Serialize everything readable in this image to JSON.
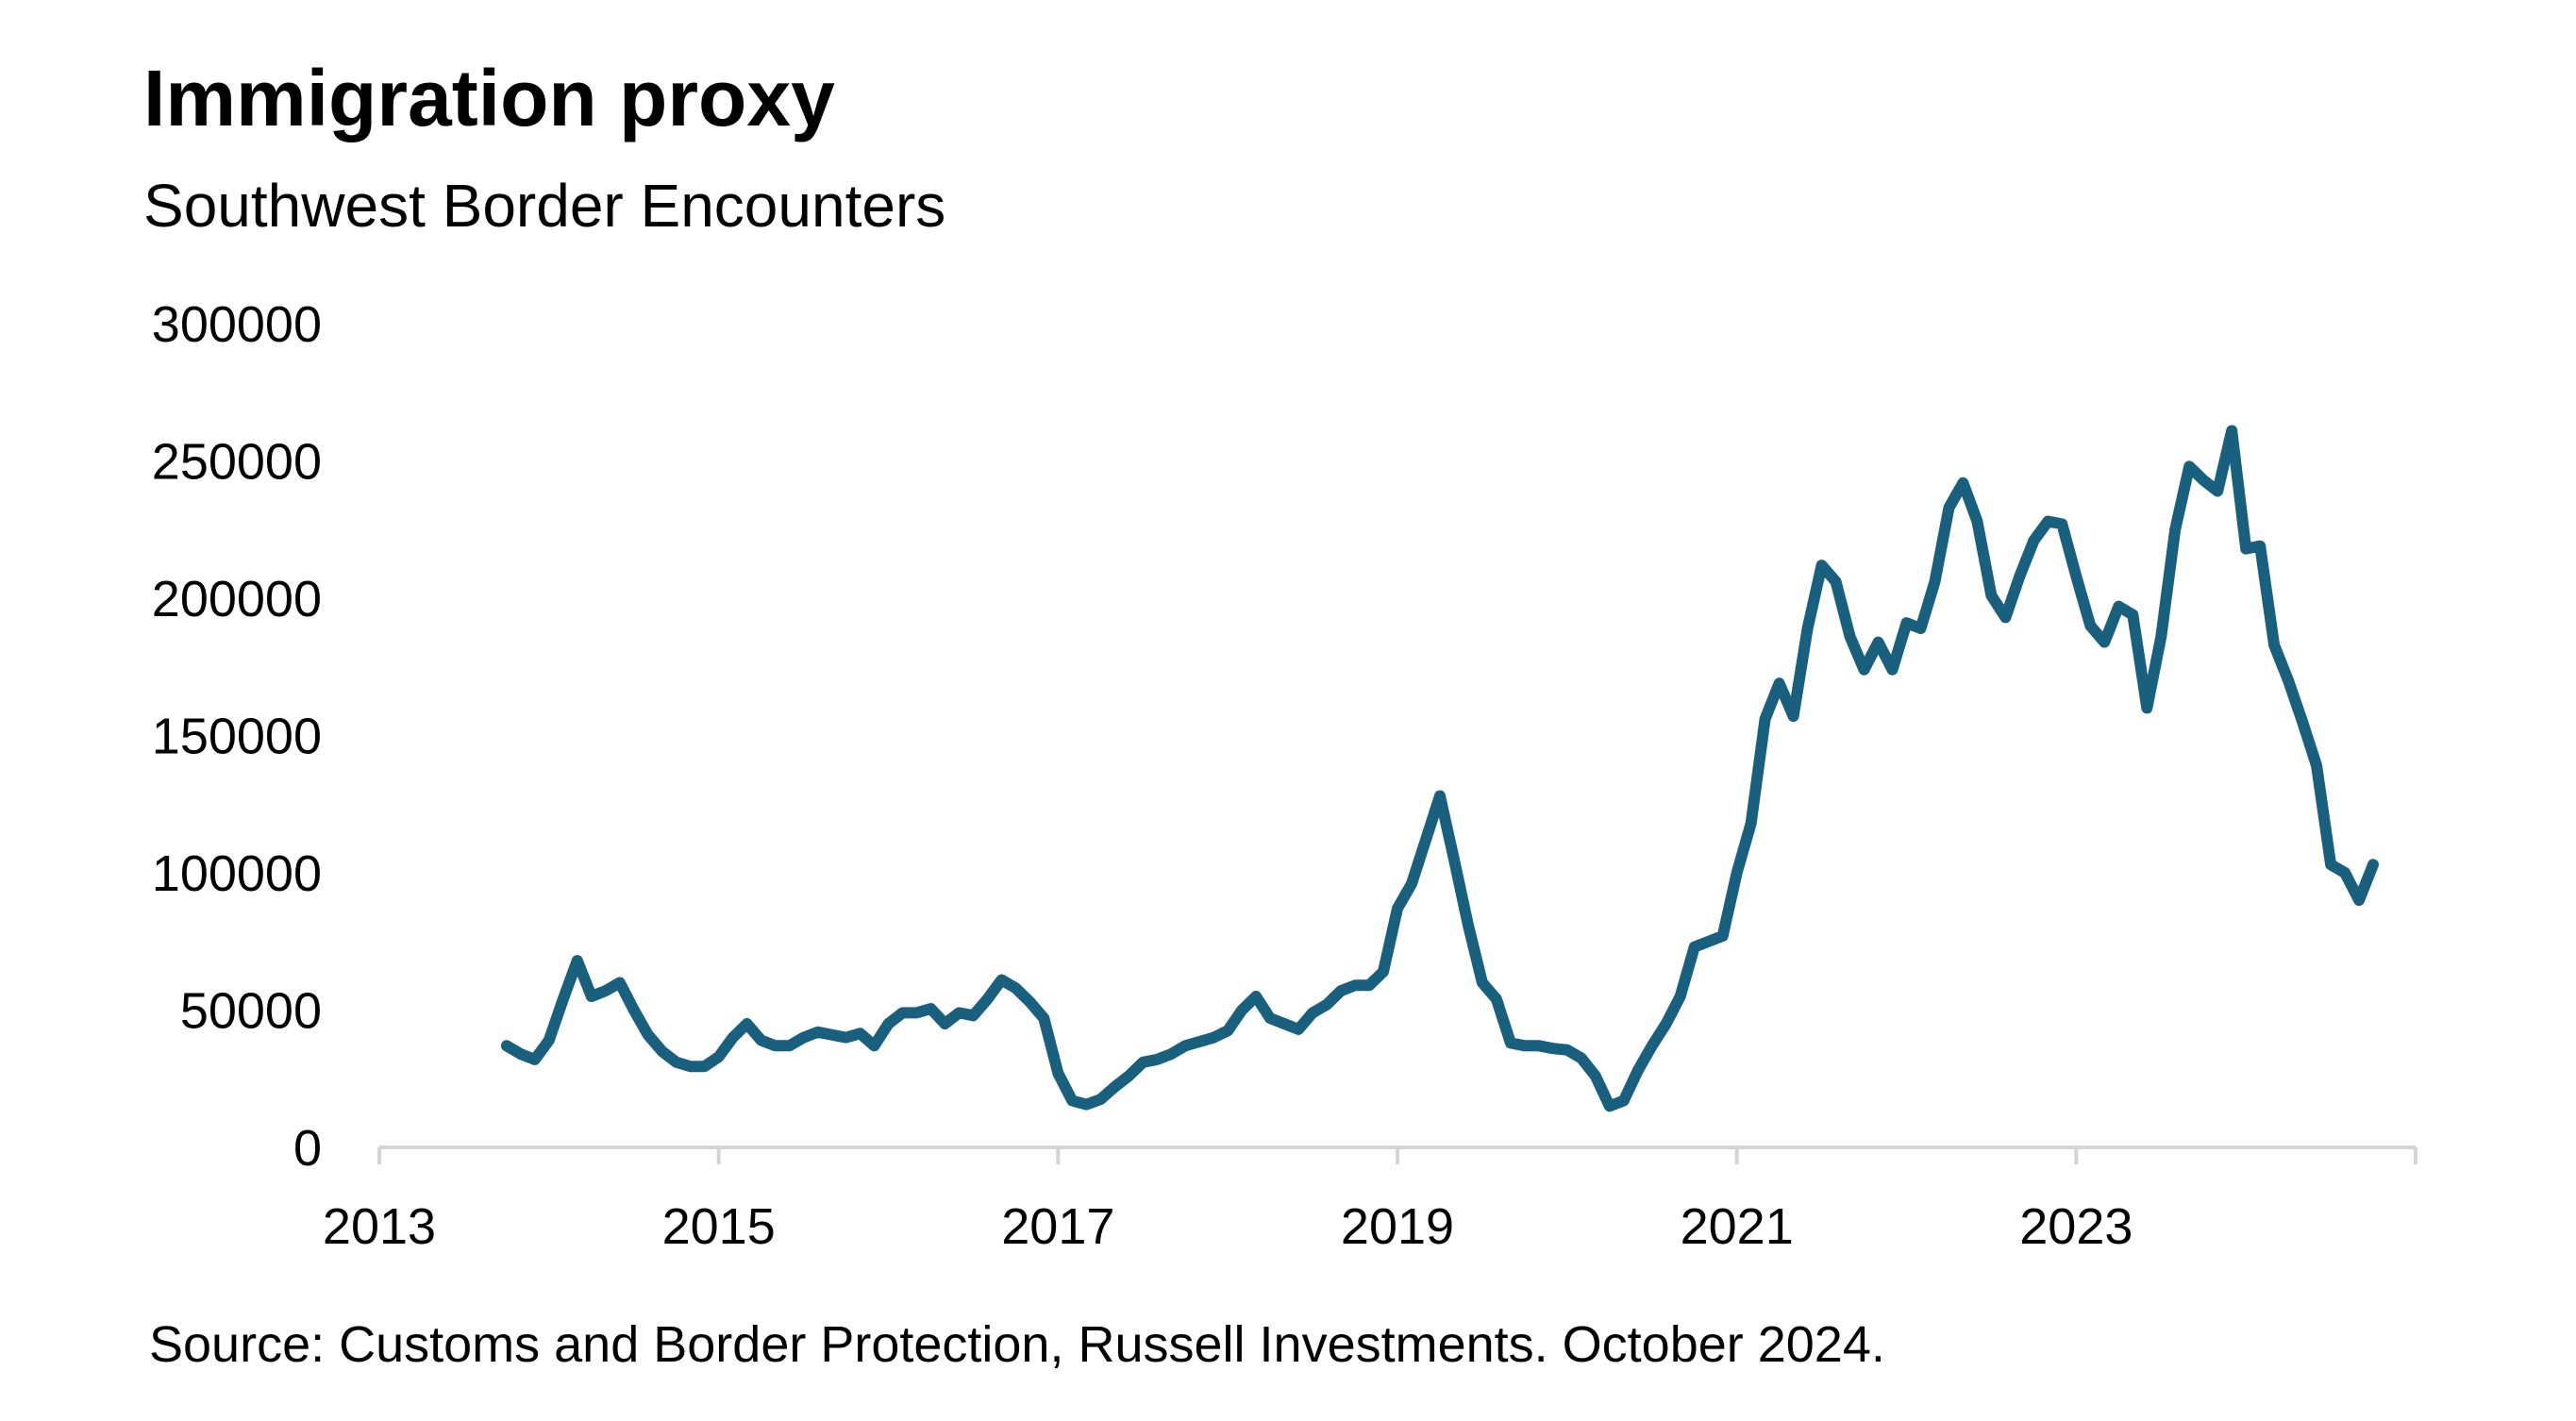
{
  "chart_data": {
    "type": "line",
    "title": "Immigration proxy",
    "subtitle": "Southwest Border Encounters",
    "source": "Source: Customs and Border Protection, Russell Investments. October 2024.",
    "xlabel": "",
    "ylabel": "",
    "xlim": [
      "2013-01",
      "2025-01"
    ],
    "ylim": [
      0,
      300000
    ],
    "x_ticks": [
      "2013",
      "2015",
      "2017",
      "2019",
      "2021",
      "2023"
    ],
    "y_ticks": [
      "0",
      "50000",
      "100000",
      "150000",
      "200000",
      "250000",
      "300000"
    ],
    "grid": false,
    "legend": "none",
    "line_color": "#19607f",
    "axis_color": "#d4d4d4",
    "x": [
      "2013-10",
      "2013-11",
      "2013-12",
      "2014-01",
      "2014-02",
      "2014-03",
      "2014-04",
      "2014-05",
      "2014-06",
      "2014-07",
      "2014-08",
      "2014-09",
      "2014-10",
      "2014-11",
      "2014-12",
      "2015-01",
      "2015-02",
      "2015-03",
      "2015-04",
      "2015-05",
      "2015-06",
      "2015-07",
      "2015-08",
      "2015-09",
      "2015-10",
      "2015-11",
      "2015-12",
      "2016-01",
      "2016-02",
      "2016-03",
      "2016-04",
      "2016-05",
      "2016-06",
      "2016-07",
      "2016-08",
      "2016-09",
      "2016-10",
      "2016-11",
      "2016-12",
      "2017-01",
      "2017-02",
      "2017-03",
      "2017-04",
      "2017-05",
      "2017-06",
      "2017-07",
      "2017-08",
      "2017-09",
      "2017-10",
      "2017-11",
      "2017-12",
      "2018-01",
      "2018-02",
      "2018-03",
      "2018-04",
      "2018-05",
      "2018-06",
      "2018-07",
      "2018-08",
      "2018-09",
      "2018-10",
      "2018-11",
      "2018-12",
      "2019-01",
      "2019-02",
      "2019-03",
      "2019-04",
      "2019-05",
      "2019-06",
      "2019-07",
      "2019-08",
      "2019-09",
      "2019-10",
      "2019-11",
      "2019-12",
      "2020-01",
      "2020-02",
      "2020-03",
      "2020-04",
      "2020-05",
      "2020-06",
      "2020-07",
      "2020-08",
      "2020-09",
      "2020-10",
      "2020-11",
      "2020-12",
      "2021-01",
      "2021-02",
      "2021-03",
      "2021-04",
      "2021-05",
      "2021-06",
      "2021-07",
      "2021-08",
      "2021-09",
      "2021-10",
      "2021-11",
      "2021-12",
      "2022-01",
      "2022-02",
      "2022-03",
      "2022-04",
      "2022-05",
      "2022-06",
      "2022-07",
      "2022-08",
      "2022-09",
      "2022-10",
      "2022-11",
      "2022-12",
      "2023-01",
      "2023-02",
      "2023-03",
      "2023-04",
      "2023-05",
      "2023-06",
      "2023-07",
      "2023-08",
      "2023-09",
      "2023-10",
      "2023-11",
      "2023-12",
      "2024-01",
      "2024-02",
      "2024-03",
      "2024-04",
      "2024-05",
      "2024-06",
      "2024-07",
      "2024-08",
      "2024-09",
      "2024-10"
    ],
    "values": [
      37000,
      34000,
      32000,
      39000,
      54000,
      68000,
      55000,
      57000,
      60000,
      50000,
      41000,
      35000,
      31000,
      29500,
      29500,
      33000,
      40000,
      45000,
      39000,
      37000,
      37000,
      40000,
      42000,
      41000,
      40000,
      41500,
      37000,
      45000,
      49000,
      49000,
      50500,
      45000,
      49000,
      48000,
      54000,
      61000,
      58000,
      53000,
      47000,
      27000,
      17000,
      15600,
      17500,
      22000,
      26000,
      31000,
      32000,
      34000,
      37000,
      38500,
      40000,
      42500,
      50000,
      55000,
      47000,
      45000,
      43000,
      49000,
      52000,
      57000,
      59000,
      59000,
      64000,
      87000,
      96000,
      112000,
      128000,
      105000,
      81000,
      60000,
      54000,
      38000,
      37000,
      37000,
      36000,
      35500,
      32500,
      26000,
      15000,
      17000,
      28000,
      37000,
      45000,
      55000,
      73000,
      75000,
      77000,
      100000,
      118000,
      156000,
      169000,
      157000,
      189000,
      212000,
      206000,
      186000,
      174000,
      184000,
      174000,
      191000,
      189000,
      206000,
      233000,
      242000,
      228000,
      201000,
      193000,
      208000,
      221000,
      228000,
      227000,
      208000,
      190000,
      184000,
      197000,
      194000,
      160000,
      186000,
      225000,
      248000,
      243000,
      239000,
      261000,
      218000,
      219000,
      183000,
      170000,
      155000,
      139000,
      103000,
      100000,
      90000,
      103000
    ]
  }
}
